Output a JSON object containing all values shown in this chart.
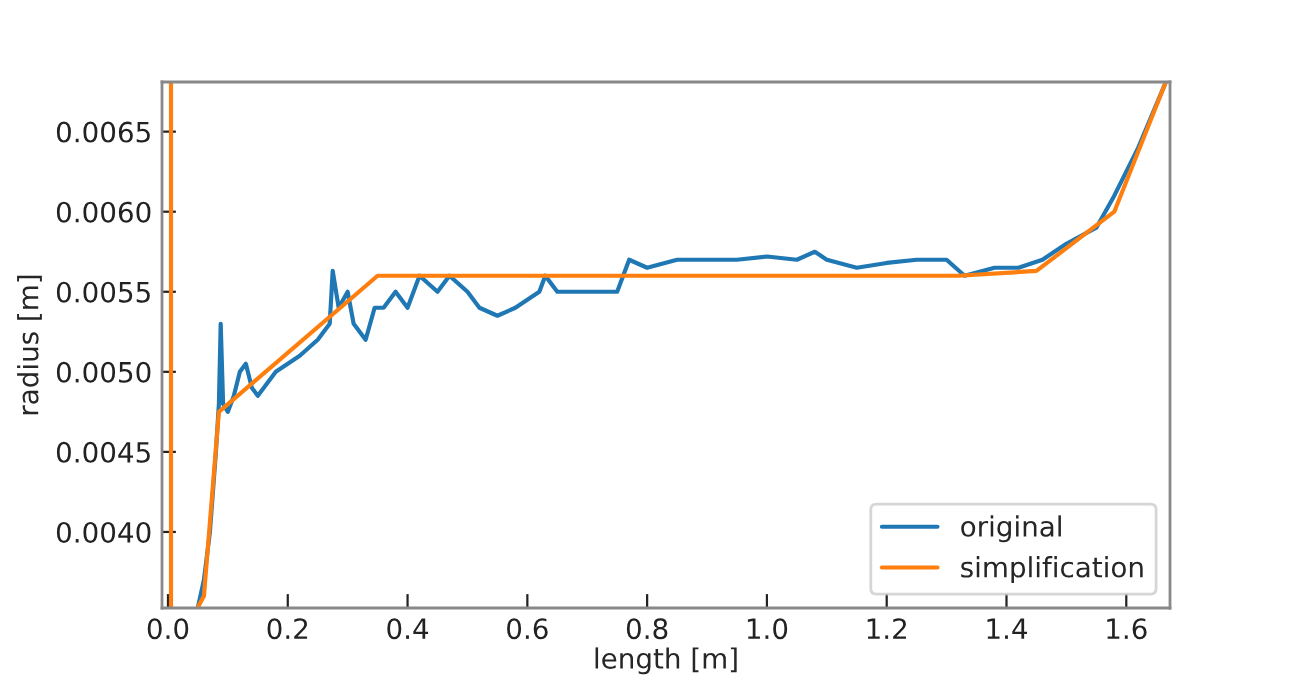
{
  "chart_data": {
    "type": "line",
    "xlabel": "length [m]",
    "ylabel": "radius [m]",
    "xlim": [
      -0.01,
      1.673
    ],
    "ylim": [
      0.003525,
      0.00681
    ],
    "xticks": [
      {
        "value": 0,
        "label": "0.0"
      },
      0.2,
      0.4,
      0.6,
      0.8,
      {
        "value": 1,
        "label": "1.0"
      },
      1.2,
      1.4,
      1.6
    ],
    "yticks": [
      {
        "value": 0.004,
        "label": "0.0040"
      },
      0.0045,
      {
        "value": 0.005,
        "label": "0.0050"
      },
      0.0055,
      {
        "value": 0.006,
        "label": "0.0060"
      },
      0.0065
    ],
    "legend": "bottom right",
    "grid": false,
    "series": [
      {
        "name": "original",
        "color": "#1f77b4",
        "x": [
          0.05,
          0.06,
          0.07,
          0.08,
          0.085,
          0.088,
          0.092,
          0.1,
          0.11,
          0.12,
          0.13,
          0.14,
          0.15,
          0.18,
          0.22,
          0.25,
          0.27,
          0.275,
          0.285,
          0.3,
          0.31,
          0.33,
          0.345,
          0.36,
          0.38,
          0.4,
          0.42,
          0.45,
          0.47,
          0.5,
          0.52,
          0.55,
          0.58,
          0.62,
          0.63,
          0.65,
          0.7,
          0.75,
          0.77,
          0.8,
          0.85,
          0.9,
          0.95,
          1.0,
          1.05,
          1.08,
          1.1,
          1.15,
          1.2,
          1.25,
          1.3,
          1.33,
          1.38,
          1.42,
          1.46,
          1.5,
          1.55,
          1.58,
          1.62,
          1.665
        ],
        "values": [
          0.00353,
          0.0037,
          0.004,
          0.0045,
          0.0048,
          0.0053,
          0.0048,
          0.00475,
          0.00485,
          0.005,
          0.00505,
          0.0049,
          0.00485,
          0.005,
          0.0051,
          0.0052,
          0.0053,
          0.00563,
          0.0054,
          0.0055,
          0.0053,
          0.0052,
          0.0054,
          0.0054,
          0.0055,
          0.0054,
          0.0056,
          0.0055,
          0.0056,
          0.0055,
          0.0054,
          0.00535,
          0.0054,
          0.0055,
          0.0056,
          0.0055,
          0.0055,
          0.0055,
          0.0057,
          0.00565,
          0.0057,
          0.0057,
          0.0057,
          0.00572,
          0.0057,
          0.00575,
          0.0057,
          0.00565,
          0.00568,
          0.0057,
          0.0057,
          0.0056,
          0.00565,
          0.00565,
          0.0057,
          0.0058,
          0.0059,
          0.0061,
          0.0064,
          0.0068
        ]
      },
      {
        "name": "simplification",
        "color": "#ff7f0e",
        "x": [
          0.005,
          0.005,
          0.02,
          0.05,
          0.06,
          0.085,
          0.35,
          1.32,
          1.45,
          1.58,
          1.665
        ],
        "values": [
          0.00681,
          0.003525,
          null,
          0.00353,
          0.0036,
          0.00475,
          0.0056,
          0.0056,
          0.00563,
          0.006,
          0.0068
        ]
      }
    ]
  }
}
